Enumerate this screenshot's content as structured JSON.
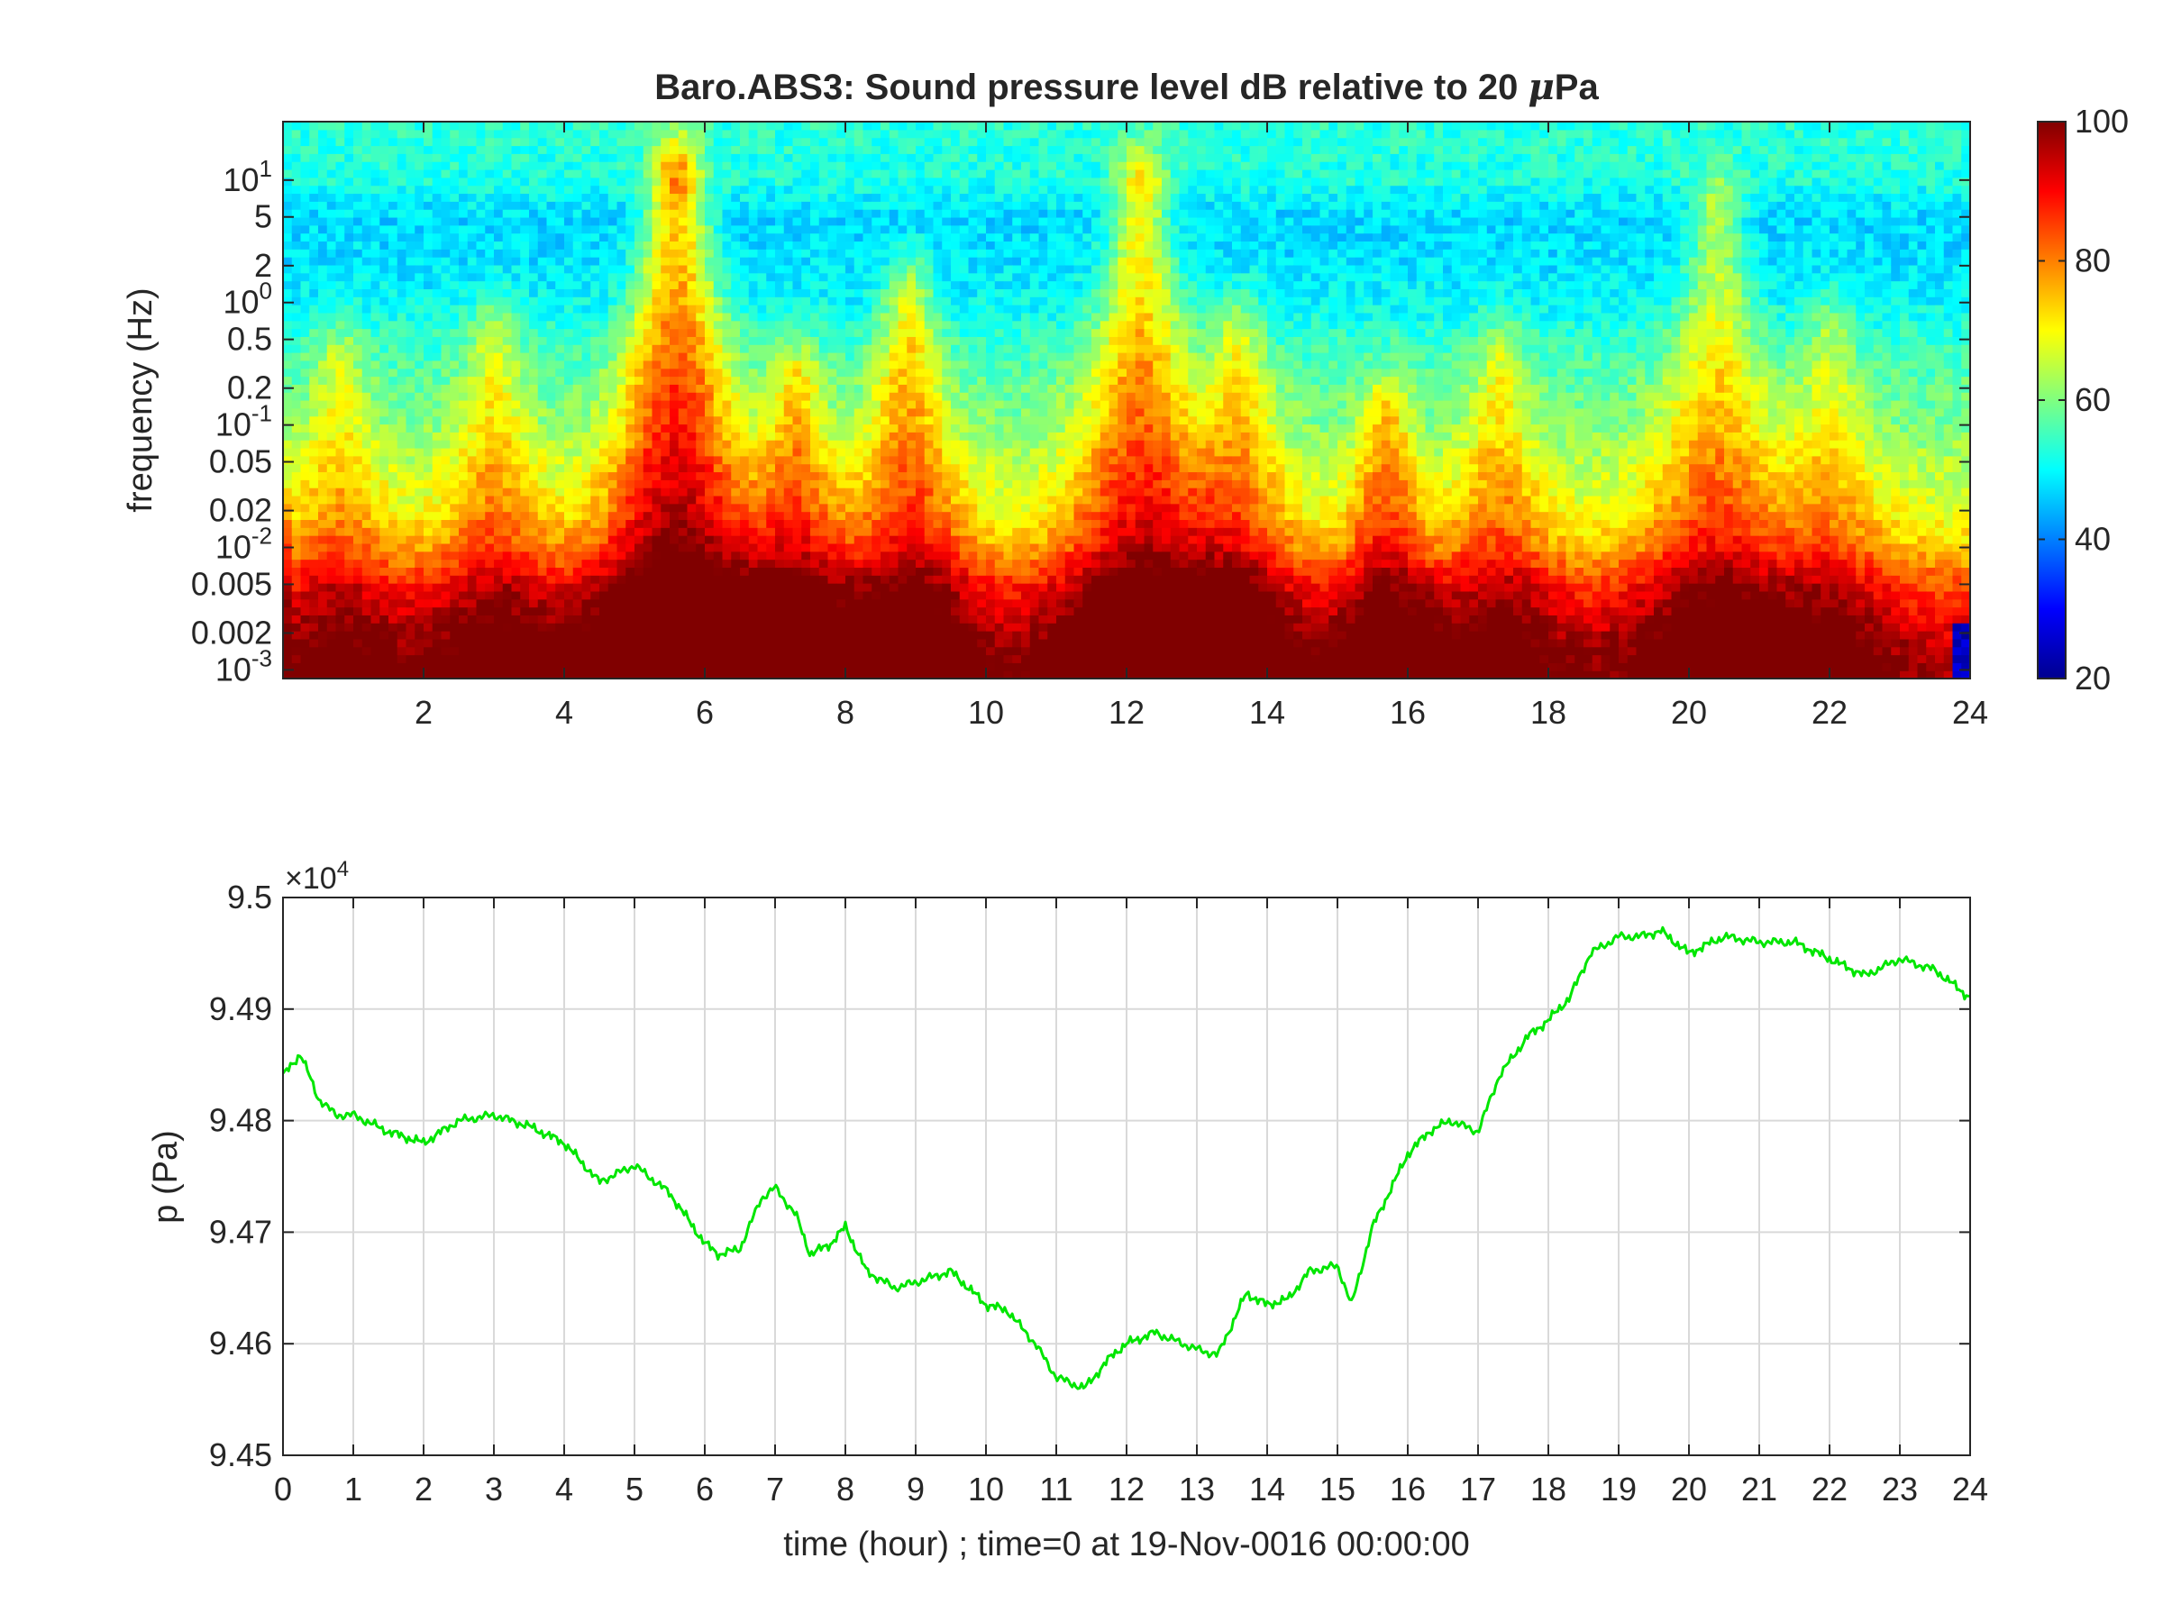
{
  "chart_data": [
    {
      "type": "heatmap",
      "title": "Baro.ABS3: Sound pressure level dB relative to 20 μPa",
      "title_prefix": "Baro.ABS3: Sound pressure level dB relative to 20 ",
      "title_mu": "μ",
      "title_suffix": "Pa",
      "ylabel": "frequency (Hz)",
      "xlabel": "",
      "x_range": [
        0,
        24
      ],
      "y_scale": "log",
      "y_range": [
        0.00085,
        30
      ],
      "x_ticks": [
        {
          "value": 2,
          "label": "2"
        },
        {
          "value": 4,
          "label": "4"
        },
        {
          "value": 6,
          "label": "6"
        },
        {
          "value": 8,
          "label": "8"
        },
        {
          "value": 10,
          "label": "10"
        },
        {
          "value": 12,
          "label": "12"
        },
        {
          "value": 14,
          "label": "14"
        },
        {
          "value": 16,
          "label": "16"
        },
        {
          "value": 18,
          "label": "18"
        },
        {
          "value": 20,
          "label": "20"
        },
        {
          "value": 22,
          "label": "22"
        },
        {
          "value": 24,
          "label": "24"
        }
      ],
      "y_ticks": [
        {
          "value": 10,
          "base": "10",
          "exp": "1",
          "label": ""
        },
        {
          "value": 5,
          "base": "",
          "exp": "",
          "label": "5"
        },
        {
          "value": 2,
          "base": "",
          "exp": "",
          "label": "2"
        },
        {
          "value": 1,
          "base": "10",
          "exp": "0",
          "label": ""
        },
        {
          "value": 0.5,
          "base": "",
          "exp": "",
          "label": "0.5"
        },
        {
          "value": 0.2,
          "base": "",
          "exp": "",
          "label": "0.2"
        },
        {
          "value": 0.1,
          "base": "10",
          "exp": "-1",
          "label": ""
        },
        {
          "value": 0.05,
          "base": "",
          "exp": "",
          "label": "0.05"
        },
        {
          "value": 0.02,
          "base": "",
          "exp": "",
          "label": "0.02"
        },
        {
          "value": 0.01,
          "base": "10",
          "exp": "-2",
          "label": ""
        },
        {
          "value": 0.005,
          "base": "",
          "exp": "",
          "label": "0.005"
        },
        {
          "value": 0.002,
          "base": "",
          "exp": "",
          "label": "0.002"
        },
        {
          "value": 0.001,
          "base": "10",
          "exp": "-3",
          "label": ""
        }
      ],
      "colormap": "jet",
      "colorbar": {
        "range": [
          20,
          100
        ],
        "ticks": [
          "100",
          "80",
          "60",
          "40",
          "20"
        ]
      },
      "level_profile_db": [
        {
          "freq_hz": 0.001,
          "db": 96
        },
        {
          "freq_hz": 0.002,
          "db": 92
        },
        {
          "freq_hz": 0.005,
          "db": 84
        },
        {
          "freq_hz": 0.01,
          "db": 74
        },
        {
          "freq_hz": 0.02,
          "db": 68
        },
        {
          "freq_hz": 0.05,
          "db": 64
        },
        {
          "freq_hz": 0.1,
          "db": 60
        },
        {
          "freq_hz": 0.2,
          "db": 58
        },
        {
          "freq_hz": 0.5,
          "db": 54
        },
        {
          "freq_hz": 1,
          "db": 50
        },
        {
          "freq_hz": 2,
          "db": 48
        },
        {
          "freq_hz": 5,
          "db": 47
        },
        {
          "freq_hz": 10,
          "db": 52
        },
        {
          "freq_hz": 20,
          "db": 53
        }
      ],
      "bursts": [
        {
          "hour": 0.8,
          "strength": 10,
          "top_hz": 0.3
        },
        {
          "hour": 3.0,
          "strength": 12,
          "top_hz": 0.5
        },
        {
          "hour": 5.6,
          "strength": 28,
          "top_hz": 10
        },
        {
          "hour": 7.3,
          "strength": 16,
          "top_hz": 0.2
        },
        {
          "hour": 8.9,
          "strength": 18,
          "top_hz": 1
        },
        {
          "hour": 12.2,
          "strength": 22,
          "top_hz": 8
        },
        {
          "hour": 13.6,
          "strength": 14,
          "top_hz": 0.5
        },
        {
          "hour": 15.7,
          "strength": 16,
          "top_hz": 0.1
        },
        {
          "hour": 17.3,
          "strength": 12,
          "top_hz": 0.3
        },
        {
          "hour": 20.4,
          "strength": 16,
          "top_hz": 5
        },
        {
          "hour": 22.0,
          "strength": 10,
          "top_hz": 0.5
        }
      ]
    },
    {
      "type": "line",
      "title": "",
      "xlabel": "time (hour) ; time=0 at 19-Nov-0016 00:00:00",
      "ylabel": "p (Pa)",
      "y_multiplier": "×10",
      "y_multiplier_exp": "4",
      "xlim": [
        0,
        24
      ],
      "ylim": [
        94500,
        95000
      ],
      "grid": true,
      "x_ticks": [
        "0",
        "1",
        "2",
        "3",
        "4",
        "5",
        "6",
        "7",
        "8",
        "9",
        "10",
        "11",
        "12",
        "13",
        "14",
        "15",
        "16",
        "17",
        "18",
        "19",
        "20",
        "21",
        "22",
        "23",
        "24"
      ],
      "y_ticks": [
        {
          "value": 94500,
          "label": "9.45"
        },
        {
          "value": 94600,
          "label": "9.46"
        },
        {
          "value": 94700,
          "label": "9.47"
        },
        {
          "value": 94800,
          "label": "9.48"
        },
        {
          "value": 94900,
          "label": "9.49"
        },
        {
          "value": 95000,
          "label": "9.5"
        }
      ],
      "series": [
        {
          "color": "#00e600",
          "x": [
            0,
            0.25,
            0.5,
            0.75,
            1,
            1.5,
            2,
            2.5,
            3,
            3.5,
            4,
            4.5,
            5,
            5.5,
            6,
            6.2,
            6.5,
            6.8,
            7,
            7.3,
            7.5,
            7.8,
            8,
            8.3,
            8.7,
            9,
            9.5,
            10,
            10.3,
            10.7,
            11,
            11.4,
            11.8,
            12,
            12.4,
            12.8,
            13,
            13.3,
            13.7,
            14,
            14.3,
            14.6,
            15,
            15.2,
            15.5,
            16,
            16.3,
            16.6,
            17,
            17.3,
            17.7,
            18,
            18.3,
            18.6,
            19,
            19.3,
            19.6,
            20,
            20.5,
            21,
            21.5,
            22,
            22.5,
            23,
            23.5,
            24
          ],
          "y": [
            94840,
            94860,
            94820,
            94805,
            94805,
            94790,
            94780,
            94800,
            94805,
            94795,
            94780,
            94745,
            94760,
            94735,
            94690,
            94680,
            94685,
            94730,
            94740,
            94715,
            94680,
            94690,
            94705,
            94665,
            94650,
            94655,
            94665,
            94635,
            94630,
            94600,
            94570,
            94560,
            94590,
            94600,
            94610,
            94600,
            94595,
            94590,
            94645,
            94635,
            94640,
            94665,
            94670,
            94635,
            94705,
            94770,
            94790,
            94800,
            94790,
            94840,
            94875,
            94890,
            94910,
            94950,
            94965,
            94965,
            94970,
            94950,
            94965,
            94960,
            94960,
            94945,
            94930,
            94945,
            94935,
            94910
          ]
        }
      ]
    }
  ]
}
